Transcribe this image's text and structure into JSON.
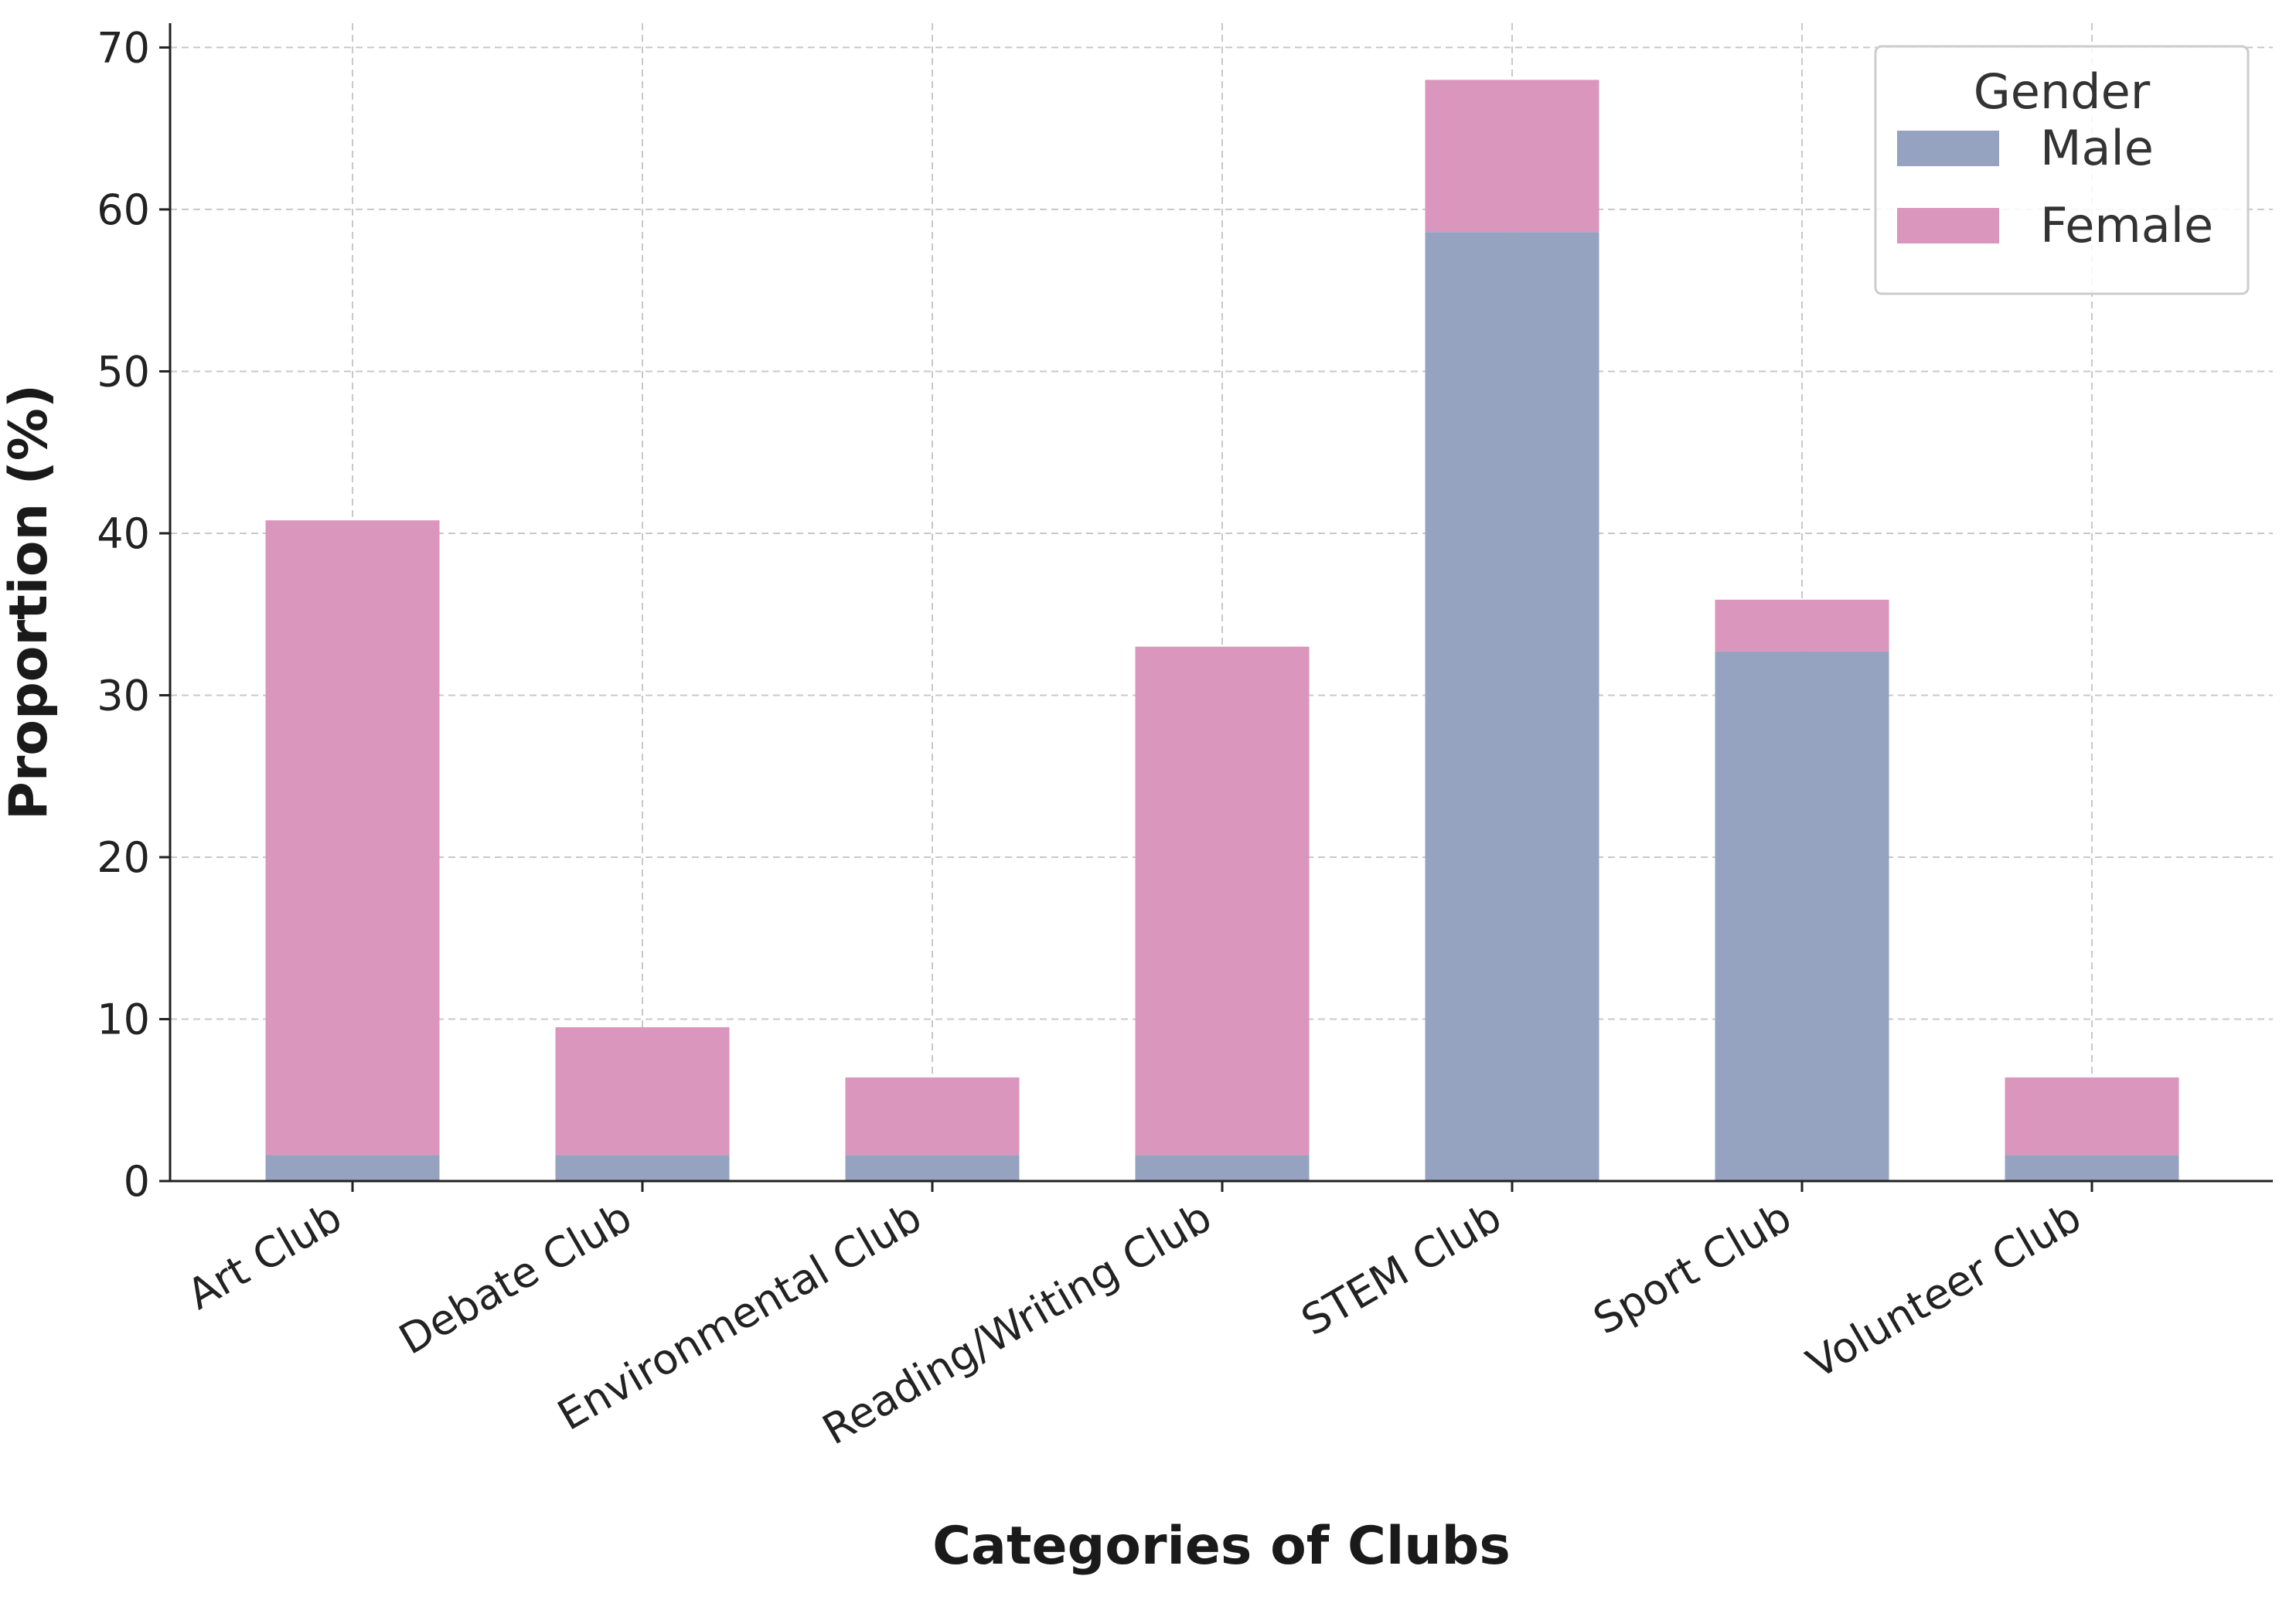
{
  "chart_data": {
    "type": "bar",
    "stacked": true,
    "categories": [
      "Art Club",
      "Debate Club",
      "Environmental Club",
      "Reading/Writing Club",
      "STEM Club",
      "Sport Club",
      "Volunteer Club"
    ],
    "series": [
      {
        "name": "Male",
        "color": "#95a3c1",
        "values": [
          1.6,
          1.6,
          1.6,
          1.6,
          58.6,
          32.7,
          1.6
        ]
      },
      {
        "name": "Female",
        "color": "#da96bd",
        "values": [
          39.2,
          7.9,
          4.8,
          31.4,
          9.4,
          3.2,
          4.8
        ]
      }
    ],
    "xlabel": "Categories of Clubs",
    "ylabel": "Proportion (%)",
    "ylim": [
      0,
      71.5
    ],
    "yticks": [
      "0",
      "10",
      "20",
      "30",
      "40",
      "50",
      "60",
      "70"
    ],
    "legend": {
      "title": "Gender",
      "placement": "top-right"
    },
    "grid": true
  }
}
